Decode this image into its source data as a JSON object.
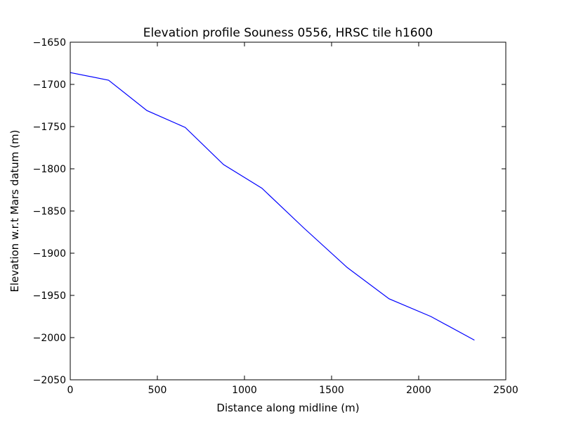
{
  "chart_data": {
    "type": "line",
    "title": "Elevation profile Souness 0556, HRSC tile h1600",
    "xlabel": "Distance along midline (m)",
    "ylabel": "Elevation w.r.t Mars datum (m)",
    "xlim": [
      0,
      2500
    ],
    "ylim": [
      -2050,
      -1650
    ],
    "x_ticks": [
      0,
      500,
      1000,
      1500,
      2000,
      2500
    ],
    "y_ticks": [
      -1650,
      -1700,
      -1750,
      -1800,
      -1850,
      -1900,
      -1950,
      -2000,
      -2050
    ],
    "x_tick_labels": [
      "0",
      "500",
      "1000",
      "1500",
      "2000",
      "2500"
    ],
    "y_tick_labels": [
      "−1650",
      "−1700",
      "−1750",
      "−1800",
      "−1850",
      "−1900",
      "−1950",
      "−2000",
      "−2050"
    ],
    "grid": false,
    "series": [
      {
        "color": "#0000ff",
        "x": [
          0,
          220,
          440,
          660,
          880,
          1100,
          1340,
          1590,
          1830,
          2070,
          2320
        ],
        "y": [
          -1686,
          -1695,
          -1731,
          -1751,
          -1795,
          -1823,
          -1870,
          -1917,
          -1954,
          -1975,
          -2003
        ]
      }
    ]
  }
}
